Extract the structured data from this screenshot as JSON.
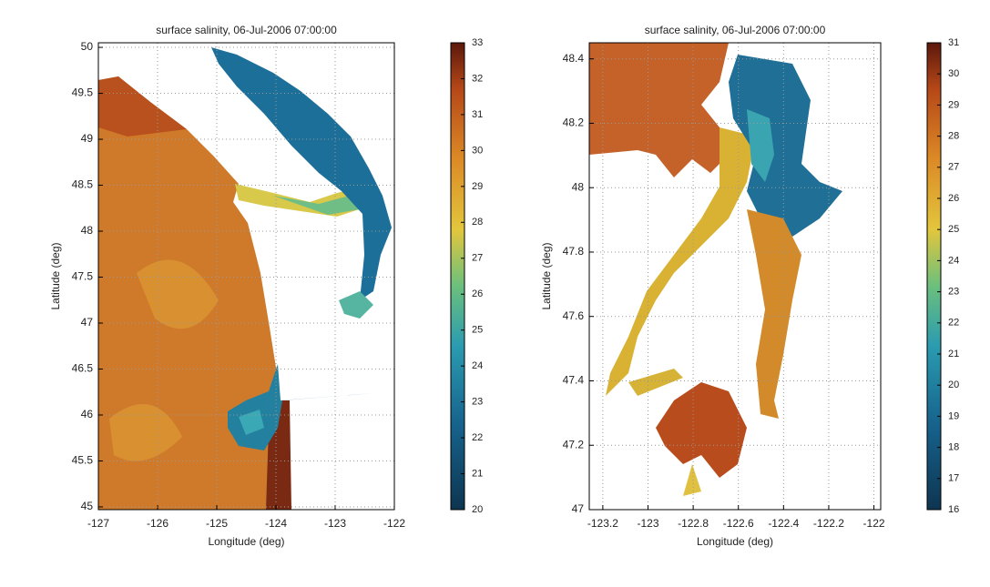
{
  "chart_data": [
    {
      "type": "map",
      "title": "surface salinity, 06-Jul-2006 07:00:00",
      "xlabel": "Longitude (deg)",
      "ylabel": "Latitude (deg)",
      "xlim": [
        -127,
        -122
      ],
      "xticks": [
        -127,
        -126,
        -125,
        -124,
        -123,
        -122
      ],
      "ylim": [
        44.97,
        50.05
      ],
      "yticks": [
        45,
        45.5,
        46,
        46.5,
        47,
        47.5,
        48,
        48.5,
        49,
        49.5,
        50
      ],
      "grid": true,
      "colorbar": {
        "lim": [
          20,
          33
        ],
        "ticks": [
          20,
          21,
          22,
          23,
          24,
          25,
          26,
          27,
          28,
          29,
          30,
          31,
          32,
          33
        ]
      }
    },
    {
      "type": "map",
      "title": "surface salinity, 06-Jul-2006 07:00:00",
      "xlabel": "Longitude (deg)",
      "ylabel": "Latitude (deg)",
      "xlim": [
        -123.26,
        -121.97
      ],
      "xticks": [
        -123.2,
        -123,
        -122.8,
        -122.6,
        -122.4,
        -122.2,
        -122
      ],
      "ylim": [
        47,
        48.45
      ],
      "yticks": [
        47,
        47.2,
        47.4,
        47.6,
        47.8,
        48,
        48.2,
        48.4
      ],
      "grid": true,
      "colorbar": {
        "lim": [
          16,
          31
        ],
        "ticks": [
          16,
          17,
          18,
          19,
          20,
          21,
          22,
          23,
          24,
          25,
          26,
          27,
          28,
          29,
          30,
          31
        ]
      }
    }
  ]
}
